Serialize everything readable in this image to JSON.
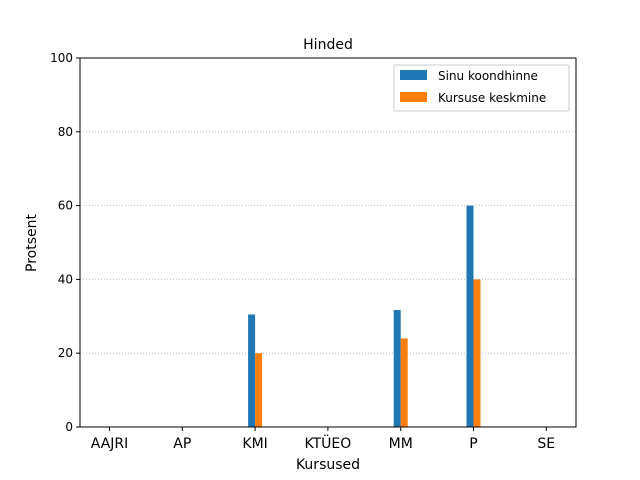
{
  "chart_data": {
    "type": "bar",
    "title": "Hinded",
    "xlabel": "Kursused",
    "ylabel": "Protsent",
    "ylim": [
      0,
      100
    ],
    "yticks": [
      0,
      20,
      40,
      60,
      80,
      100
    ],
    "grid": "y-dotted",
    "legend_position": "top-right",
    "categories": [
      "AAJRI",
      "AP",
      "KMI",
      "KTÜEO",
      "MM",
      "P",
      "SE"
    ],
    "series": [
      {
        "name": "Sinu koondhinne",
        "color": "#1f77b4",
        "values": [
          0,
          0,
          30.5,
          0,
          31.7,
          60,
          0
        ]
      },
      {
        "name": "Kursuse keskmine",
        "color": "#ff7f0e",
        "values": [
          0,
          0,
          20,
          0,
          24,
          40,
          0
        ]
      }
    ]
  }
}
